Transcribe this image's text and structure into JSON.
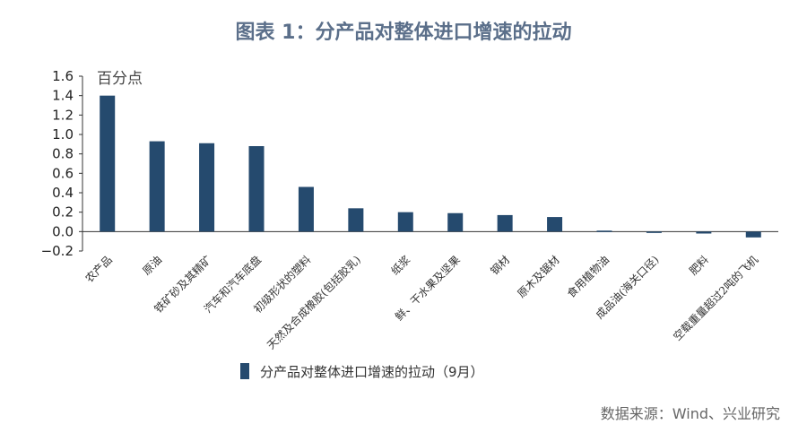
{
  "title": "图表 1：分产品对整体进口增速的拉动",
  "source": "数据来源：Wind、兴业研究",
  "chart_data": {
    "type": "bar",
    "ylabel": "百分点",
    "ylim": [
      -0.2,
      1.6
    ],
    "yticks": [
      "1.6",
      "1.4",
      "1.2",
      "1.0",
      "0.8",
      "0.6",
      "0.4",
      "0.2",
      "0.0",
      "−0.2"
    ],
    "categories": [
      "农产品",
      "原油",
      "铁矿砂及其精矿",
      "汽车和汽车底盘",
      "初级形状的塑料",
      "天然及合成橡胶(包括胶乳)",
      "纸浆",
      "鲜、干水果及坚果",
      "钢材",
      "原木及锯材",
      "食用植物油",
      "成品油(海关口径)",
      "肥料",
      "空载重量超过2吨的飞机"
    ],
    "series": [
      {
        "name": "分产品对整体进口增速的拉动（9月）",
        "values": [
          1.4,
          0.93,
          0.91,
          0.88,
          0.46,
          0.24,
          0.2,
          0.19,
          0.17,
          0.15,
          0.01,
          -0.01,
          -0.02,
          -0.06
        ],
        "color": "#254a6e"
      }
    ],
    "grid": false,
    "legend": "bottom-left"
  }
}
